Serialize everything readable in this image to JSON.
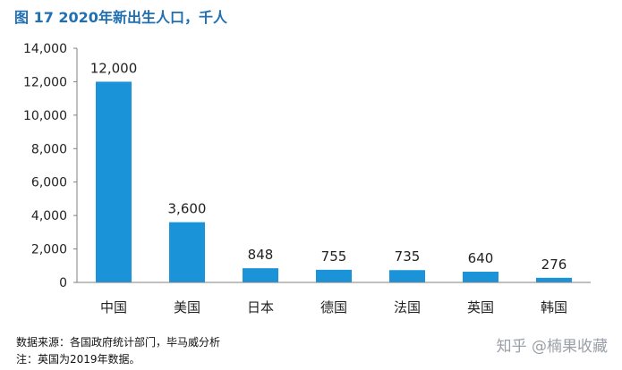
{
  "title": "图 17  2020年新出生人口，千人",
  "chart_data": {
    "type": "bar",
    "title": "图 17  2020年新出生人口，千人",
    "categories": [
      "中国",
      "美国",
      "日本",
      "德国",
      "法国",
      "英国",
      "韩国"
    ],
    "values": [
      12000,
      3600,
      848,
      755,
      735,
      640,
      276
    ],
    "data_labels": [
      "12,000",
      "3,600",
      "848",
      "755",
      "735",
      "640",
      "276"
    ],
    "yticks": [
      "0",
      "2,000",
      "4,000",
      "6,000",
      "8,000",
      "10,000",
      "12,000",
      "14,000"
    ],
    "ylim": [
      0,
      14000
    ],
    "bar_color": "#1a93d9",
    "grid": false,
    "legend": "none"
  },
  "footnotes": {
    "source": "数据来源：各国政府统计部门，毕马威分析",
    "note": "注：英国为2019年数据。"
  },
  "watermark": "知乎 @楠果收藏"
}
